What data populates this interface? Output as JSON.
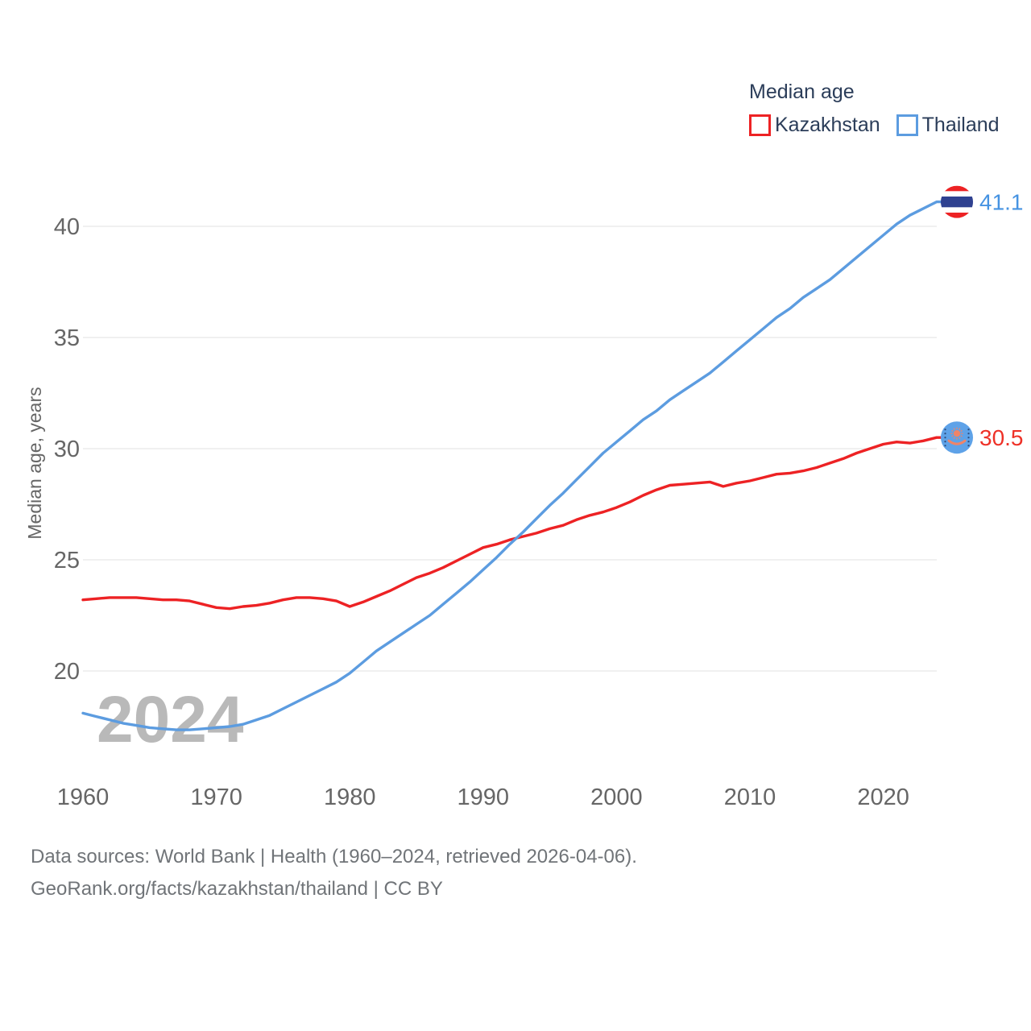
{
  "legend": {
    "title": "Median age",
    "items": [
      {
        "label": "Kazakhstan",
        "color": "#ed2224"
      },
      {
        "label": "Thailand",
        "color": "#5c9ce0"
      }
    ]
  },
  "watermark": "2024",
  "footer": {
    "line1": "Data sources: World Bank | Health (1960–2024, retrieved 2026-04-06).",
    "line2": "GeoRank.org/facts/kazakhstan/thailand | CC BY"
  },
  "chart_data": {
    "type": "line",
    "title": "Median age",
    "xlabel": "",
    "ylabel": "Median age, years",
    "grid": "horizontal",
    "legend_position": "top-right",
    "ylim": [
      17,
      42.5
    ],
    "yticks": [
      20,
      25,
      30,
      35,
      40
    ],
    "xticks": [
      1960,
      1970,
      1980,
      1990,
      2000,
      2010,
      2020
    ],
    "x": [
      1960,
      1961,
      1962,
      1963,
      1964,
      1965,
      1966,
      1967,
      1968,
      1969,
      1970,
      1971,
      1972,
      1973,
      1974,
      1975,
      1976,
      1977,
      1978,
      1979,
      1980,
      1981,
      1982,
      1983,
      1984,
      1985,
      1986,
      1987,
      1988,
      1989,
      1990,
      1991,
      1992,
      1993,
      1994,
      1995,
      1996,
      1997,
      1998,
      1999,
      2000,
      2001,
      2002,
      2003,
      2004,
      2005,
      2006,
      2007,
      2008,
      2009,
      2010,
      2011,
      2012,
      2013,
      2014,
      2015,
      2016,
      2017,
      2018,
      2019,
      2020,
      2021,
      2022,
      2023,
      2024
    ],
    "series": [
      {
        "name": "Kazakhstan",
        "color": "#ed2224",
        "label_color": "#ee3127",
        "flag_icon": "kazakhstan-flag-icon",
        "end_label": "30.5",
        "values": [
          23.2,
          23.25,
          23.3,
          23.3,
          23.3,
          23.25,
          23.2,
          23.2,
          23.15,
          23.0,
          22.85,
          22.8,
          22.9,
          22.95,
          23.05,
          23.2,
          23.3,
          23.3,
          23.25,
          23.15,
          22.9,
          23.1,
          23.35,
          23.6,
          23.9,
          24.2,
          24.4,
          24.65,
          24.95,
          25.25,
          25.55,
          25.7,
          25.9,
          26.05,
          26.2,
          26.4,
          26.55,
          26.8,
          27.0,
          27.15,
          27.35,
          27.6,
          27.9,
          28.15,
          28.35,
          28.4,
          28.45,
          28.5,
          28.3,
          28.45,
          28.55,
          28.7,
          28.85,
          28.9,
          29.0,
          29.15,
          29.35,
          29.55,
          29.8,
          30.0,
          30.2,
          30.3,
          30.25,
          30.35,
          30.5
        ]
      },
      {
        "name": "Thailand",
        "color": "#5c9ce0",
        "label_color": "#4693e2",
        "flag_icon": "thailand-flag-icon",
        "end_label": "41.1",
        "values": [
          18.1,
          17.95,
          17.8,
          17.65,
          17.55,
          17.45,
          17.4,
          17.35,
          17.35,
          17.4,
          17.45,
          17.5,
          17.6,
          17.8,
          18.0,
          18.3,
          18.6,
          18.9,
          19.2,
          19.5,
          19.9,
          20.4,
          20.9,
          21.3,
          21.7,
          22.1,
          22.5,
          23.0,
          23.5,
          24.0,
          24.55,
          25.1,
          25.7,
          26.25,
          26.85,
          27.45,
          28.0,
          28.6,
          29.2,
          29.8,
          30.3,
          30.8,
          31.3,
          31.7,
          32.2,
          32.6,
          33.0,
          33.4,
          33.9,
          34.4,
          34.9,
          35.4,
          35.9,
          36.3,
          36.8,
          37.2,
          37.6,
          38.1,
          38.6,
          39.1,
          39.6,
          40.1,
          40.5,
          40.8,
          41.1
        ]
      }
    ]
  },
  "colors": {
    "grid": "#e8e8e8",
    "axis_text": "#666666",
    "watermark": "#b9b9b9",
    "thai_flag_blue": "#2f4190",
    "thai_flag_red": "#ed2224",
    "thai_flag_white": "#ffffff",
    "kazakh_flag_blue": "#5ea2e8",
    "kazakh_emblem": "#f08468",
    "kazakh_ornament": "#2c4a7c"
  }
}
